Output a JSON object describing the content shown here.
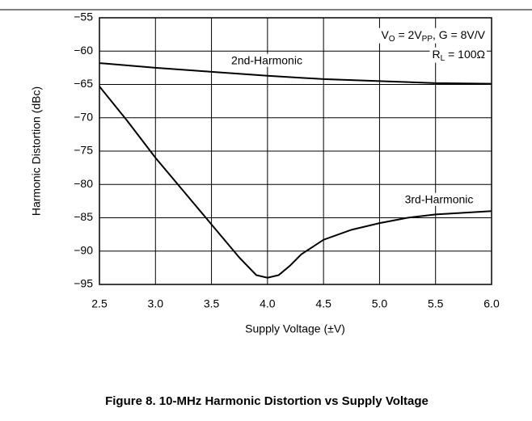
{
  "chart_data": {
    "type": "line",
    "xlabel": "Supply Voltage (±V)",
    "ylabel": "Harmonic Distortion (dBc)",
    "caption": "Figure 8. 10-MHz Harmonic Distortion vs Supply Voltage",
    "annotations": [
      [
        "V",
        "O",
        " = 2V",
        "PP",
        ", G = 8V/V"
      ],
      [
        "R",
        "L",
        " = 100Ω"
      ]
    ],
    "xlim": [
      2.5,
      6.0
    ],
    "ylim": [
      -95,
      -55
    ],
    "xticks": [
      2.5,
      {
        "value": 3,
        "label": "3.0"
      },
      3.5,
      {
        "value": 4,
        "label": "4.0"
      },
      4.5,
      {
        "value": 5,
        "label": "5.0"
      },
      5.5,
      {
        "value": 6,
        "label": "6.0"
      }
    ],
    "yticks": [
      {
        "value": -55,
        "label": "−55"
      },
      {
        "value": -60,
        "label": "−60"
      },
      {
        "value": -65,
        "label": "−65"
      },
      {
        "value": -70,
        "label": "−70"
      },
      {
        "value": -75,
        "label": "−75"
      },
      {
        "value": -80,
        "label": "−80"
      },
      {
        "value": -85,
        "label": "−85"
      },
      {
        "value": -90,
        "label": "−90"
      },
      {
        "value": -95,
        "label": "−95"
      }
    ],
    "grid": true,
    "series": [
      {
        "name": "2nd-Harmonic",
        "color": "#000000",
        "x": [
          2.5,
          3.0,
          3.5,
          4.0,
          4.5,
          5.0,
          5.5,
          6.0
        ],
        "values": [
          -61.8,
          -62.5,
          -63.1,
          -63.7,
          -64.2,
          -64.5,
          -64.8,
          -64.9
        ]
      },
      {
        "name": "3rd-Harmonic",
        "color": "#000000",
        "x": [
          2.5,
          2.75,
          3.0,
          3.25,
          3.5,
          3.75,
          3.9,
          4.0,
          4.1,
          4.2,
          4.3,
          4.5,
          4.75,
          5.0,
          5.25,
          5.5,
          6.0
        ],
        "values": [
          -65.3,
          -70.5,
          -76,
          -81,
          -86,
          -91,
          -93.6,
          -94,
          -93.6,
          -92.2,
          -90.5,
          -88.3,
          -86.8,
          -85.8,
          -85,
          -84.5,
          -84
        ]
      }
    ]
  }
}
